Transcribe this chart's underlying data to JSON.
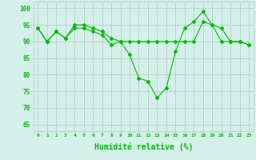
{
  "line1_x": [
    0,
    1,
    2,
    3,
    4,
    5,
    6,
    7,
    8,
    9,
    10,
    11,
    12,
    13,
    14,
    15,
    16,
    17,
    18,
    19,
    20,
    21,
    22,
    23
  ],
  "line1_y": [
    94,
    90,
    93,
    91,
    94,
    94,
    93,
    92,
    89,
    90,
    86,
    79,
    78,
    73,
    76,
    87,
    94,
    96,
    99,
    95,
    94,
    90,
    90,
    89
  ],
  "line2_x": [
    0,
    1,
    2,
    3,
    4,
    5,
    6,
    7,
    8,
    9,
    10,
    11,
    12,
    13,
    14,
    15,
    16,
    17,
    18,
    19,
    20,
    21,
    22,
    23
  ],
  "line2_y": [
    94,
    90,
    93,
    91,
    95,
    95,
    94,
    93,
    91,
    90,
    90,
    90,
    90,
    90,
    90,
    90,
    90,
    90,
    96,
    95,
    90,
    90,
    90,
    89
  ],
  "line_color": "#00bb00",
  "bg_color": "#d5f0eb",
  "grid_color": "#aaccbb",
  "xlabel": "Humidité relative (%)",
  "yticks": [
    65,
    70,
    75,
    80,
    85,
    90,
    95,
    100
  ],
  "xticks": [
    0,
    1,
    2,
    3,
    4,
    5,
    6,
    7,
    8,
    9,
    10,
    11,
    12,
    13,
    14,
    15,
    16,
    17,
    18,
    19,
    20,
    21,
    22,
    23
  ],
  "xlim": [
    -0.5,
    23.5
  ],
  "ylim": [
    63,
    102
  ]
}
